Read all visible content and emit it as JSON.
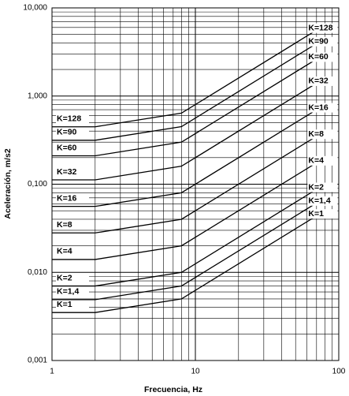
{
  "chart_data": {
    "type": "line",
    "x_label": "Frecuencia, Hz",
    "y_label": "Aceleración, m/s2",
    "xscale": "log",
    "yscale": "log",
    "grid": true,
    "xlim": [
      1,
      100
    ],
    "ylim": [
      0.001,
      10
    ],
    "xticks": [
      1,
      10,
      100
    ],
    "yticks": [
      {
        "value": 0.001,
        "label": "0,001"
      },
      {
        "value": 0.01,
        "label": "0,010"
      },
      {
        "value": 0.1,
        "label": "0,100"
      },
      {
        "value": 1,
        "label": "1,000"
      },
      {
        "value": 10,
        "label": "10,000"
      }
    ],
    "x": [
      1,
      2,
      8,
      80
    ],
    "series": [
      {
        "name": "K=1",
        "color": "#000000",
        "values": [
          0.0035,
          0.0035,
          0.005,
          0.05
        ]
      },
      {
        "name": "K=1,4",
        "color": "#000000",
        "values": [
          0.0049,
          0.0049,
          0.007,
          0.07
        ]
      },
      {
        "name": "K=2",
        "color": "#000000",
        "values": [
          0.007,
          0.007,
          0.01,
          0.1
        ]
      },
      {
        "name": "K=4",
        "color": "#000000",
        "values": [
          0.014,
          0.014,
          0.02,
          0.2
        ]
      },
      {
        "name": "K=8",
        "color": "#000000",
        "values": [
          0.028,
          0.028,
          0.04,
          0.4
        ]
      },
      {
        "name": "K=16",
        "color": "#000000",
        "values": [
          0.056,
          0.056,
          0.08,
          0.8
        ]
      },
      {
        "name": "K=32",
        "color": "#000000",
        "values": [
          0.112,
          0.112,
          0.16,
          1.6
        ]
      },
      {
        "name": "K=60",
        "color": "#000000",
        "values": [
          0.21,
          0.21,
          0.3,
          3
        ]
      },
      {
        "name": "K=90",
        "color": "#000000",
        "values": [
          0.315,
          0.315,
          0.45,
          4.5
        ]
      },
      {
        "name": "K=128",
        "color": "#000000",
        "values": [
          0.448,
          0.448,
          0.64,
          6.4
        ]
      }
    ]
  }
}
